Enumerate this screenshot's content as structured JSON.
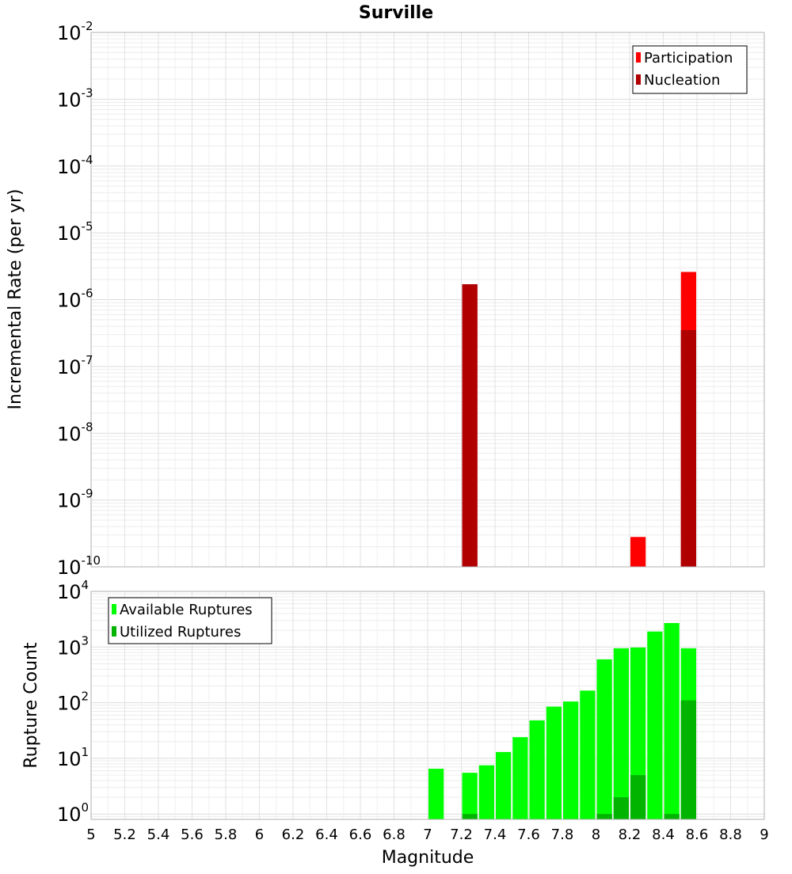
{
  "chart_data": [
    {
      "type": "bar",
      "title": "Surville",
      "xlabel": "",
      "ylabel": "Incremental Rate (per yr)",
      "yscale": "log",
      "ylim": [
        1e-10,
        0.01
      ],
      "xlim": [
        5,
        9
      ],
      "bar_width": 0.1,
      "ytick_labels": [
        {
          "base": "10",
          "exp": "-2"
        },
        {
          "base": "10",
          "exp": "-3"
        },
        {
          "base": "10",
          "exp": "-4"
        },
        {
          "base": "10",
          "exp": "-5"
        },
        {
          "base": "10",
          "exp": "-6"
        },
        {
          "base": "10",
          "exp": "-7"
        },
        {
          "base": "10",
          "exp": "-8"
        },
        {
          "base": "10",
          "exp": "-9"
        },
        {
          "base": "10",
          "exp": "-10"
        }
      ],
      "legend": {
        "position": "top-right",
        "entries": [
          "Participation",
          "Nucleation"
        ]
      },
      "series": [
        {
          "name": "Participation",
          "color": "#ff0000",
          "x": [
            7.25,
            8.25,
            8.55
          ],
          "values": [
            1.7e-06,
            2.8e-10,
            2.6e-06
          ]
        },
        {
          "name": "Nucleation",
          "color": "#b00000",
          "x": [
            7.25,
            8.55
          ],
          "values": [
            1.7e-06,
            3.5e-07
          ]
        }
      ],
      "grid": true
    },
    {
      "type": "bar",
      "title": "",
      "xlabel": "Magnitude",
      "ylabel": "Rupture Count",
      "yscale": "log",
      "ylim": [
        0.8,
        10000
      ],
      "xlim": [
        5,
        9
      ],
      "bar_width": 0.1,
      "ytick_labels": [
        {
          "base": "10",
          "exp": "4"
        },
        {
          "base": "10",
          "exp": "3"
        },
        {
          "base": "10",
          "exp": "2"
        },
        {
          "base": "10",
          "exp": "1"
        },
        {
          "base": "10",
          "exp": "0"
        }
      ],
      "xtick_labels": [
        "5",
        "5.2",
        "5.4",
        "5.6",
        "5.8",
        "6",
        "6.2",
        "6.4",
        "6.6",
        "6.8",
        "7",
        "7.2",
        "7.4",
        "7.6",
        "7.8",
        "8",
        "8.2",
        "8.4",
        "8.6",
        "8.8",
        "9"
      ],
      "legend": {
        "position": "top-left",
        "entries": [
          "Available Ruptures",
          "Utilized Ruptures"
        ]
      },
      "series": [
        {
          "name": "Available Ruptures",
          "color": "#00ff00",
          "x": [
            7.05,
            7.25,
            7.35,
            7.45,
            7.55,
            7.65,
            7.75,
            7.85,
            7.95,
            8.05,
            8.15,
            8.25,
            8.35,
            8.45,
            8.55
          ],
          "values": [
            6.5,
            5.5,
            7.5,
            13,
            24,
            48,
            85,
            105,
            165,
            600,
            950,
            980,
            1900,
            2700,
            950
          ]
        },
        {
          "name": "Utilized Ruptures",
          "color": "#00b400",
          "x": [
            7.25,
            8.05,
            8.15,
            8.25,
            8.45,
            8.55
          ],
          "values": [
            1,
            1,
            2,
            5,
            1,
            110
          ]
        }
      ],
      "grid": true
    }
  ]
}
